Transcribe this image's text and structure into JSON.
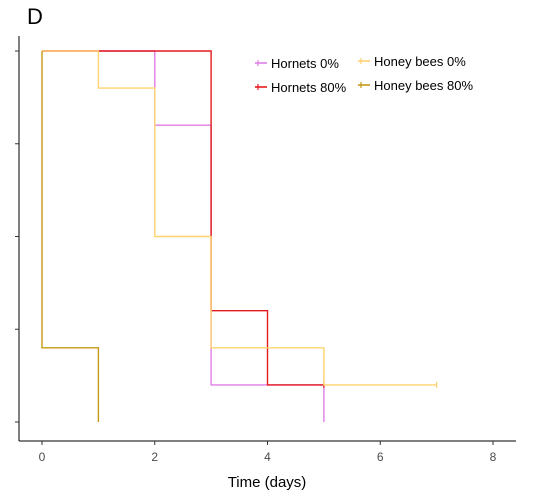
{
  "chart_data": {
    "type": "line",
    "step": true,
    "panel_label": "D",
    "xlabel": "Time (days)",
    "ylabel": "",
    "xlim": [
      -0.4,
      8.4
    ],
    "ylim": [
      0,
      1.0
    ],
    "xticks": [
      0,
      2,
      4,
      6,
      8
    ],
    "yticks": [
      0,
      0.25,
      0.5,
      0.75,
      1.0
    ],
    "show_ytick_labels": false,
    "grid": false,
    "legend_position": "top-right",
    "series": [
      {
        "name": "Hornets 0%",
        "color": "#e07ee6",
        "points": [
          [
            0,
            1.0
          ],
          [
            2,
            1.0
          ],
          [
            2,
            0.8
          ],
          [
            3,
            0.8
          ],
          [
            3,
            0.1
          ],
          [
            5,
            0.1
          ],
          [
            5,
            0
          ]
        ]
      },
      {
        "name": "Hornets 80%",
        "color": "#e41a1c",
        "points": [
          [
            0,
            1.0
          ],
          [
            3,
            1.0
          ],
          [
            3,
            0.3
          ],
          [
            4,
            0.3
          ],
          [
            4,
            0.1
          ],
          [
            5,
            0.1
          ]
        ]
      },
      {
        "name": "Honey bees 0%",
        "color": "#ffd36e",
        "points": [
          [
            0,
            1.0
          ],
          [
            1,
            1.0
          ],
          [
            1,
            0.9
          ],
          [
            2,
            0.9
          ],
          [
            2,
            0.5
          ],
          [
            3,
            0.5
          ],
          [
            3,
            0.2
          ],
          [
            5,
            0.2
          ],
          [
            5,
            0.1
          ],
          [
            7,
            0.1
          ]
        ]
      },
      {
        "name": "Honey bees 80%",
        "color": "#c49a16",
        "points": [
          [
            0,
            1.0
          ],
          [
            0,
            0.2
          ],
          [
            1,
            0.2
          ],
          [
            1,
            0
          ]
        ]
      }
    ]
  }
}
